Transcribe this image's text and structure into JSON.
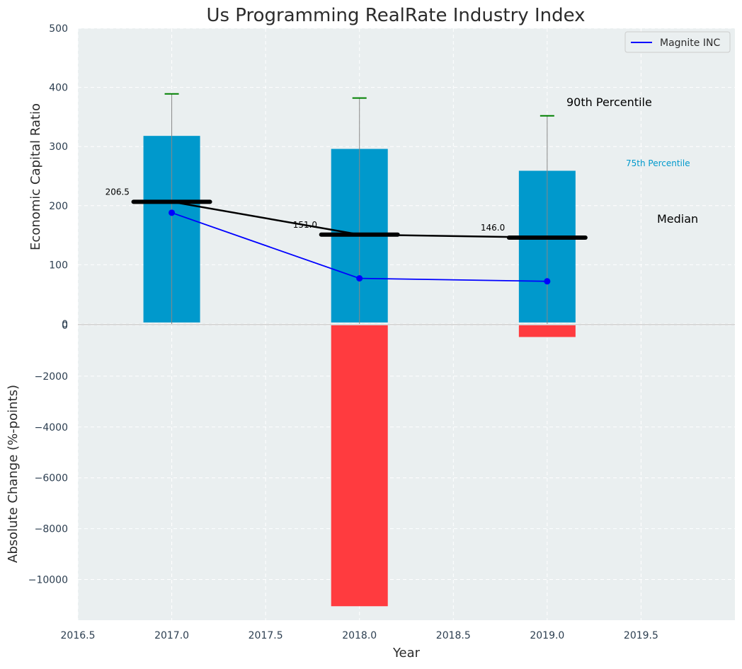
{
  "chart_data": {
    "type": "bar",
    "title": "Us Programming RealRate Industry Index",
    "xlabel": "Year",
    "x_range": [
      2016.5,
      2020.0
    ],
    "x_ticks": [
      "2016.5",
      "2017.0",
      "2017.5",
      "2018.0",
      "2018.5",
      "2019.0",
      "2019.5"
    ],
    "grid": true,
    "legend_position": "top-right",
    "colors": {
      "plot_bg": "#eaeff0",
      "grid": "#ffffff",
      "percentile_75_bar": "#0099cc",
      "change_bar": "#ff3b3f",
      "median": "#000000",
      "company": "#0000ff",
      "p90_cap": "#008000",
      "whisker": "#888888"
    },
    "top_panel": {
      "ylabel": "Economic Capital Ratio",
      "ylim": [
        0,
        500
      ],
      "y_ticks": [
        "0",
        "100",
        "200",
        "300",
        "400",
        "500"
      ],
      "years": [
        2017,
        2018,
        2019
      ],
      "percentile_75": [
        318,
        296,
        259
      ],
      "percentile_90": [
        389,
        382,
        352
      ],
      "median": [
        206.5,
        151.0,
        146.0
      ],
      "median_labels": [
        "206.5",
        "151.0",
        "146.0"
      ],
      "company_name": "Magnite INC",
      "company_values": [
        188,
        77,
        72
      ],
      "annotations": {
        "p90": "90th Percentile",
        "p75": "75th Percentile",
        "median": "Median"
      }
    },
    "bottom_panel": {
      "ylabel": "Absolute Change (%-points)",
      "ylim": [
        -11600,
        0
      ],
      "y_ticks": [
        "0",
        "−2000",
        "−4000",
        "−6000",
        "−8000",
        "−10000"
      ],
      "years": [
        2017,
        2018,
        2019
      ],
      "values": [
        0,
        -11050,
        -460
      ]
    }
  }
}
